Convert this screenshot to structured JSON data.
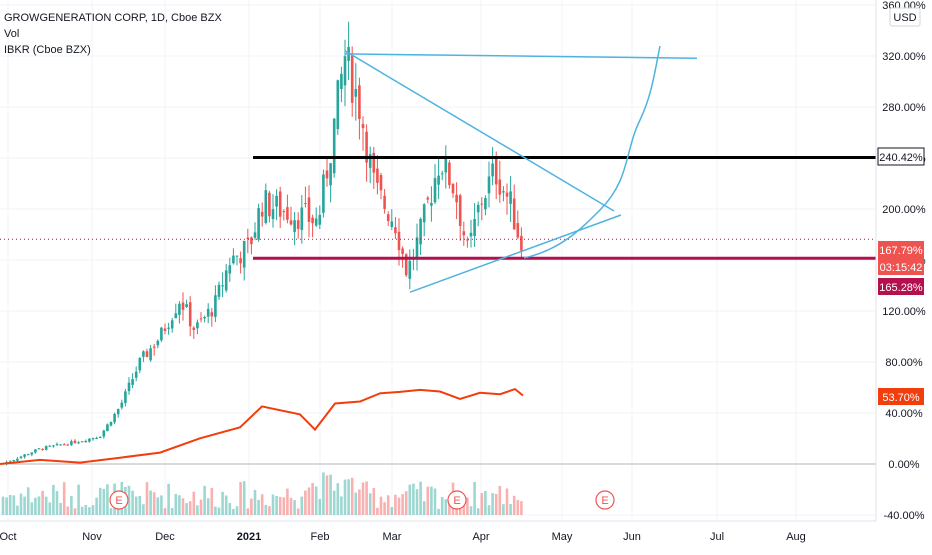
{
  "legend": {
    "symbol_line": "GROWGENERATION CORP, 1D, Cboe BZX",
    "volume_label": "Vol",
    "compare_label": "IBKR (Cboe BZX)"
  },
  "currency_label": "USD",
  "colors": {
    "up": "#26a69a",
    "down": "#ef5350",
    "compare": "#f23d0c",
    "trendline": "#4fb3e0",
    "resistance": "#000000",
    "support": "#b4104e",
    "projection": "#4fb3e0",
    "earnings": "#ef5350"
  },
  "chart_data": {
    "type": "candlestick",
    "ylabel": "%",
    "ylim": [
      -40,
      360
    ],
    "yticks": [
      "360.00%",
      "320.00%",
      "280.00%",
      "240.00%",
      "200.00%",
      "160.00%",
      "120.00%",
      "80.00%",
      "40.00%",
      "0.00%",
      "-40.00%"
    ],
    "xticks": [
      "Oct",
      "Nov",
      "Dec",
      "2021",
      "Feb",
      "Mar",
      "Apr",
      "May",
      "Jun",
      "Jul",
      "Aug"
    ],
    "series": [
      {
        "name": "GROWGENERATION CORP",
        "kind": "candles",
        "last_value": 167.79
      },
      {
        "name": "IBKR (Cboe BZX)",
        "kind": "line",
        "last_value": 53.7
      },
      {
        "name": "Vol",
        "kind": "volume"
      }
    ],
    "price_labels": [
      {
        "text": "240.42%",
        "value": 240.42,
        "style": "resistance"
      },
      {
        "text": "167.79%",
        "value": 167.79,
        "style": "up"
      },
      {
        "text": "03:15:42",
        "value": 162.8,
        "style": "up-sub"
      },
      {
        "text": "165.28%",
        "value": 165.28,
        "style": "support"
      },
      {
        "text": "53.70%",
        "value": 53.7,
        "style": "compare"
      }
    ],
    "earnings_markers": [
      {
        "label": "E",
        "month": "Nov"
      },
      {
        "label": "E",
        "month": "Apr"
      },
      {
        "label": "E",
        "month": "May"
      }
    ],
    "drawings": {
      "resistance_line": 240.42,
      "support_line": 165.28,
      "triangle_top_line": [
        324,
        330
      ],
      "triangle_upper_start": 324,
      "triangle_lower_start": 134
    }
  }
}
